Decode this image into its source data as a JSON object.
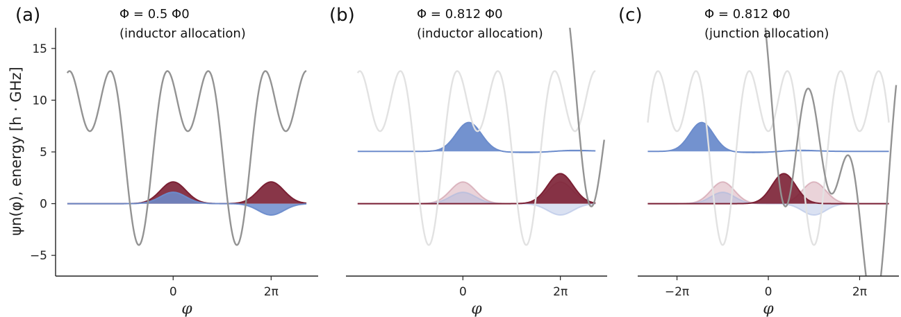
{
  "figure": {
    "y_axis_label": "ψn(φ),  energy [h · GHz]"
  },
  "chart_data": [
    {
      "type": "line",
      "panel": "(a)",
      "annotation": [
        "Φ = 0.5 Φ0",
        "(inductor allocation)"
      ],
      "xlabel": "φ",
      "xlim": [
        -1.2,
        1.48
      ],
      "ylim": [
        -7,
        17
      ],
      "x_ticks": [
        0,
        1
      ],
      "x_tick_labels": [
        "0",
        "2π"
      ],
      "y_ticks": [
        -5,
        0,
        5,
        10,
        15
      ],
      "y_tick_labels": [
        "−5",
        "0",
        "5",
        "10",
        "15"
      ],
      "potentials": [
        {
          "name": "potential",
          "color": "#939393",
          "alpha": 1,
          "a": 0.65,
          "b": 0.65,
          "c": 10.5,
          "d": 0,
          "x_range": [
            -1.08,
            1.36
          ]
        }
      ],
      "wavefunctions": [
        {
          "name": "ground state",
          "color": "#7b2034",
          "alpha": 0.9,
          "offset": 0,
          "x_range": [
            -1.08,
            1.36
          ],
          "lobes": [
            [
              0,
              2.1,
              0.13
            ],
            [
              1,
              2.1,
              0.13
            ]
          ]
        },
        {
          "name": "excited state",
          "color": "#6c8ccc",
          "alpha": 0.85,
          "offset": 0,
          "x_range": [
            -1.08,
            1.36
          ],
          "lobes": [
            [
              0,
              1.1,
              0.13
            ],
            [
              1,
              -1.1,
              0.13
            ]
          ]
        }
      ]
    },
    {
      "type": "line",
      "panel": "(b)",
      "annotation": [
        "Φ = 0.812 Φ0",
        "(inductor allocation)"
      ],
      "xlabel": "φ",
      "xlim": [
        -1.2,
        1.48
      ],
      "ylim": [
        -7,
        17
      ],
      "x_ticks": [
        0,
        1
      ],
      "x_tick_labels": [
        "0",
        "2π"
      ],
      "y_ticks": [
        -5,
        0,
        5,
        10,
        15
      ],
      "y_tick_labels": [],
      "potentials": [
        {
          "name": "potential (Φ = 0.5 Φ0)",
          "color": "#e2e2e2",
          "alpha": 1,
          "a": 0.65,
          "b": 0.65,
          "c": 10.5,
          "d": 0,
          "x_range": [
            -1.08,
            1.36
          ]
        },
        {
          "name": "potential",
          "color": "#939393",
          "alpha": 1,
          "a": 1.3,
          "b": 0.6,
          "c": 9.5,
          "d": 3.4,
          "x_range": [
            -0.59,
            1.45
          ]
        }
      ],
      "wavefunctions": [
        {
          "name": "ground state (Φ = 0.5 Φ0)",
          "color": "#b86e82",
          "alpha": 0.3,
          "offset": 0,
          "x_range": [
            -1.08,
            1.36
          ],
          "lobes": [
            [
              0,
              2.1,
              0.13
            ],
            [
              1,
              2.1,
              0.13
            ]
          ]
        },
        {
          "name": "excited state (Φ = 0.5 Φ0)",
          "color": "#a3b5df",
          "alpha": 0.4,
          "offset": 0,
          "x_range": [
            -1.08,
            1.36
          ],
          "lobes": [
            [
              0,
              1.1,
              0.13
            ],
            [
              1,
              -1.1,
              0.13
            ]
          ]
        },
        {
          "name": "ground state",
          "color": "#7b2034",
          "alpha": 0.9,
          "offset": 0,
          "x_range": [
            -1.08,
            1.36
          ],
          "lobes": [
            [
              1,
              2.9,
              0.13
            ]
          ]
        },
        {
          "name": "excited state",
          "color": "#6c8ccc",
          "alpha": 0.95,
          "offset": 5.05,
          "x_range": [
            -1.08,
            1.36
          ],
          "lobes": [
            [
              0.06,
              2.8,
              0.13
            ],
            [
              0.75,
              -0.12,
              0.3
            ],
            [
              1.1,
              0.15,
              0.2
            ]
          ]
        }
      ]
    },
    {
      "type": "line",
      "panel": "(c)",
      "annotation": [
        "Φ = 0.812 Φ0",
        "(junction allocation)"
      ],
      "xlabel": "φ",
      "xlim": [
        -1.43,
        1.43
      ],
      "ylim": [
        -7,
        17
      ],
      "x_ticks": [
        -1,
        0,
        1
      ],
      "x_tick_labels": [
        "−2π",
        "0",
        "2π"
      ],
      "y_ticks": [
        -5,
        0,
        5,
        10,
        15
      ],
      "y_tick_labels": [],
      "potentials": [
        {
          "name": "potential (Φ = 0.5 Φ0)",
          "color": "#e2e2e2",
          "alpha": 1,
          "a": -0.5,
          "b": 0.65,
          "c": 10.5,
          "d": 0,
          "x_range": [
            -1.32,
            1.32
          ]
        },
        {
          "name": "potential",
          "color": "#939393",
          "alpha": 1,
          "a": 0.17,
          "b": 0.6,
          "c": 9.5,
          "d": 3.4,
          "x_range": [
            -1.25,
            1.4
          ]
        }
      ],
      "wavefunctions": [
        {
          "name": "ground state (Φ = 0.5 Φ0)",
          "color": "#b86e82",
          "alpha": 0.3,
          "offset": 0,
          "x_range": [
            -1.32,
            1.32
          ],
          "lobes": [
            [
              -0.5,
              2.1,
              0.13
            ],
            [
              0.5,
              2.1,
              0.13
            ]
          ]
        },
        {
          "name": "excited state (Φ = 0.5 Φ0)",
          "color": "#a3b5df",
          "alpha": 0.4,
          "offset": 0,
          "x_range": [
            -1.32,
            1.32
          ],
          "lobes": [
            [
              -0.5,
              1.1,
              0.13
            ],
            [
              0.5,
              -1.1,
              0.13
            ]
          ]
        },
        {
          "name": "ground state",
          "color": "#7b2034",
          "alpha": 0.9,
          "offset": 0,
          "x_range": [
            -1.32,
            1.32
          ],
          "lobes": [
            [
              0.17,
              2.9,
              0.13
            ]
          ]
        },
        {
          "name": "excited state",
          "color": "#6c8ccc",
          "alpha": 0.95,
          "offset": 5.05,
          "x_range": [
            -1.32,
            1.32
          ],
          "lobes": [
            [
              -0.73,
              2.8,
              0.13
            ],
            [
              -0.08,
              -0.12,
              0.3
            ],
            [
              0.3,
              0.15,
              0.2
            ]
          ]
        }
      ]
    }
  ]
}
